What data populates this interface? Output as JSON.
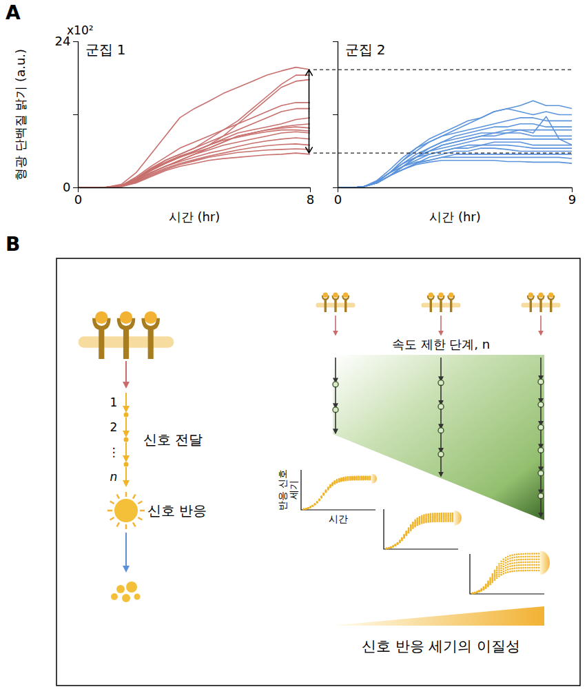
{
  "panels": [
    "A",
    "B"
  ],
  "chart_data": [
    {
      "type": "line",
      "title": "군집 1",
      "xlabel": "시간 (hr)",
      "ylabel": "형광 단백질 밝기 (a.u.)",
      "y_multiplier": "x10²",
      "x": [
        0,
        0.5,
        1,
        1.5,
        2,
        2.5,
        3,
        3.5,
        4,
        4.5,
        5,
        5.5,
        6,
        6.5,
        7,
        7.5,
        8
      ],
      "xlim": [
        0,
        8
      ],
      "xticks": [
        0,
        8
      ],
      "ylim": [
        0,
        24
      ],
      "yticks": [
        0,
        {
          "value": 12,
          "label": null
        },
        24
      ],
      "color": "#c8706d",
      "range_arrow": [
        5.7,
        19.4
      ],
      "series": [
        {
          "values": [
            0,
            0,
            0.1,
            0.6,
            2.5,
            5.5,
            8.5,
            11.5,
            13,
            14.2,
            15.5,
            16.5,
            17.5,
            18.5,
            19.2,
            19.8,
            19.4
          ]
        },
        {
          "values": [
            0,
            0,
            0.1,
            0.4,
            1.5,
            3,
            4.5,
            5.5,
            6.5,
            8,
            9.5,
            11,
            13,
            15,
            17,
            18.5,
            18.5
          ]
        },
        {
          "values": [
            0,
            0,
            0.1,
            0.3,
            1.3,
            2.8,
            4,
            5,
            6,
            7,
            8.5,
            10.5,
            12.5,
            14.5,
            16.5,
            17.5,
            17.8
          ]
        },
        {
          "values": [
            0,
            0,
            0.1,
            0.4,
            1.8,
            3.5,
            5,
            6.5,
            7.5,
            8.5,
            9.5,
            10.5,
            11.5,
            12.5,
            13.5,
            14,
            14
          ]
        },
        {
          "values": [
            0,
            0,
            0.1,
            0.4,
            1.6,
            3.2,
            4.5,
            5.5,
            6.5,
            7.5,
            8.5,
            9.5,
            10.5,
            11.5,
            12.5,
            13,
            13
          ]
        },
        {
          "values": [
            0,
            0,
            0.1,
            0.3,
            1.5,
            3,
            4.2,
            5.2,
            6,
            7,
            8,
            9,
            9.5,
            10,
            10.5,
            11.2,
            11.5
          ]
        },
        {
          "values": [
            0,
            0,
            0.1,
            0.3,
            1.4,
            3,
            4,
            5,
            5.8,
            6.5,
            7.5,
            8.5,
            9,
            9.5,
            10,
            10.3,
            10.5
          ]
        },
        {
          "values": [
            0,
            0,
            0.1,
            0.3,
            1.2,
            2.5,
            3.5,
            4.5,
            5.5,
            6.5,
            7.5,
            8.5,
            9,
            9.5,
            9.8,
            10,
            9.8
          ]
        },
        {
          "values": [
            0,
            0,
            0.1,
            0.3,
            1.3,
            2.8,
            4,
            5,
            6,
            7,
            7.8,
            8.3,
            8.8,
            9.2,
            9.5,
            9.5,
            9.3
          ]
        },
        {
          "values": [
            0,
            0,
            0.1,
            0.3,
            1.1,
            2.4,
            3.5,
            4.5,
            5.5,
            6.2,
            7,
            7.5,
            8,
            8.5,
            9,
            9.2,
            9
          ]
        },
        {
          "values": [
            0,
            0,
            0.1,
            0.3,
            1.2,
            2.5,
            3.5,
            4.3,
            5,
            5.7,
            6.2,
            6.8,
            7.3,
            7.7,
            8,
            8.2,
            8
          ]
        },
        {
          "values": [
            0,
            0,
            0.1,
            0.3,
            1,
            2.2,
            3.2,
            4,
            4.6,
            5.2,
            5.7,
            6.2,
            6.6,
            6.9,
            7.1,
            7.2,
            7
          ]
        },
        {
          "values": [
            0,
            0,
            0.1,
            0.2,
            0.9,
            2,
            3,
            3.8,
            4.4,
            5,
            5.4,
            5.8,
            6,
            6.2,
            6.3,
            6.4,
            6.3
          ]
        },
        {
          "values": [
            0,
            0,
            0.1,
            0.2,
            0.8,
            1.8,
            2.8,
            3.5,
            4,
            4.5,
            4.8,
            5,
            5.2,
            5.4,
            5.5,
            5.7,
            5.5
          ]
        }
      ]
    },
    {
      "type": "line",
      "title": "군집 2",
      "xlabel": "시간 (hr)",
      "x": [
        0,
        0.5,
        1,
        1.5,
        2,
        2.5,
        3,
        3.5,
        4,
        4.5,
        5,
        5.5,
        6,
        6.5,
        7,
        7.5,
        8,
        8.5,
        9
      ],
      "xlim": [
        0,
        9
      ],
      "xticks": [
        0,
        9
      ],
      "ylim": [
        0,
        24
      ],
      "yticks": [
        0,
        12,
        24
      ],
      "tick_labels": "x",
      "color": "#5b93dc",
      "reference_lines": [
        19.4,
        5.7
      ],
      "series": [
        {
          "values": [
            0,
            0,
            0.2,
            1,
            2.5,
            4.5,
            6.5,
            8,
            9,
            10,
            11,
            11.5,
            12.5,
            13,
            13.5,
            14.3,
            13.5,
            13.5,
            13
          ]
        },
        {
          "values": [
            0,
            0,
            0.2,
            1,
            2.5,
            4.5,
            6,
            7.5,
            8.5,
            9.5,
            10.5,
            11.5,
            12.5,
            13,
            12.5,
            12,
            12.5,
            12,
            12
          ]
        },
        {
          "values": [
            0,
            0,
            0.2,
            1.2,
            3,
            5,
            6.5,
            7.5,
            8.5,
            9,
            9.5,
            10,
            10.5,
            11,
            11.5,
            11.5,
            11,
            11,
            11
          ]
        },
        {
          "values": [
            0,
            0,
            0.2,
            0.8,
            2,
            3.5,
            5,
            6.5,
            7.5,
            8.5,
            9,
            9.5,
            10,
            10,
            10.5,
            10.5,
            10,
            10,
            10
          ]
        },
        {
          "values": [
            0,
            0,
            0.2,
            0.8,
            2,
            3.5,
            5,
            6,
            7,
            7.5,
            8,
            8.5,
            9,
            9,
            9.5,
            9,
            11.7,
            8,
            7
          ]
        },
        {
          "values": [
            0,
            0,
            0.2,
            1,
            2.5,
            4,
            5.5,
            6.5,
            7.5,
            8,
            8.5,
            9,
            9,
            9.5,
            9.5,
            9.5,
            9.5,
            9.5,
            9.5
          ]
        },
        {
          "values": [
            0,
            0,
            0.2,
            0.8,
            2,
            3.5,
            5,
            6,
            7,
            7.5,
            8,
            8.5,
            8.5,
            9,
            9,
            8.5,
            8.5,
            8.5,
            8.5
          ]
        },
        {
          "values": [
            0,
            0,
            0.2,
            1,
            2.5,
            4,
            5,
            6,
            6.5,
            7,
            7.5,
            8,
            8,
            8,
            8,
            8,
            8,
            8,
            8
          ]
        },
        {
          "values": [
            0,
            0,
            0.2,
            0.8,
            2,
            3.5,
            4.5,
            5.5,
            6,
            6.5,
            7,
            7,
            7.5,
            7.5,
            7.5,
            7,
            7,
            7,
            7
          ]
        },
        {
          "values": [
            0,
            0,
            0.2,
            1,
            2.5,
            4,
            5,
            5.5,
            6,
            6.5,
            6.5,
            7,
            7,
            7,
            6.8,
            6.5,
            6.5,
            6.5,
            6.5
          ]
        },
        {
          "values": [
            0,
            0,
            0.2,
            0.8,
            2,
            3,
            4,
            5,
            5.5,
            6,
            6,
            6.5,
            6.5,
            6.3,
            6,
            6,
            6,
            6,
            6
          ]
        },
        {
          "values": [
            0,
            0,
            0.2,
            0.8,
            2,
            3,
            4,
            4.5,
            5,
            5.5,
            5.5,
            5.5,
            5.5,
            5.5,
            5.5,
            5.5,
            5.5,
            5.5,
            5.5
          ]
        },
        {
          "values": [
            0,
            0,
            0.2,
            1,
            2.5,
            3.5,
            4.2,
            4.5,
            5,
            5,
            5,
            5,
            5,
            5,
            5,
            5,
            5,
            5,
            4.8
          ]
        },
        {
          "values": [
            0,
            0,
            0.2,
            0.8,
            2,
            3,
            3.8,
            4.2,
            4.5,
            4.5,
            4.5,
            4.5,
            4.5,
            4.3,
            4.3,
            4.2,
            4.2,
            4.2,
            4
          ]
        }
      ]
    }
  ],
  "diagram": {
    "pathway": {
      "steps": [
        "1",
        "2",
        "⋮",
        "n"
      ],
      "label": "신호 전달",
      "response": "신호 반응"
    },
    "rate_limiting": {
      "label": "속도 제한 단계, n",
      "intermediates": [
        2,
        4,
        6
      ]
    },
    "mini_chart": {
      "ylabel": [
        "반응 신호",
        "세기"
      ],
      "xlabel": "시간"
    },
    "heterogeneity_label": "신호 반응 세기의 이질성"
  }
}
